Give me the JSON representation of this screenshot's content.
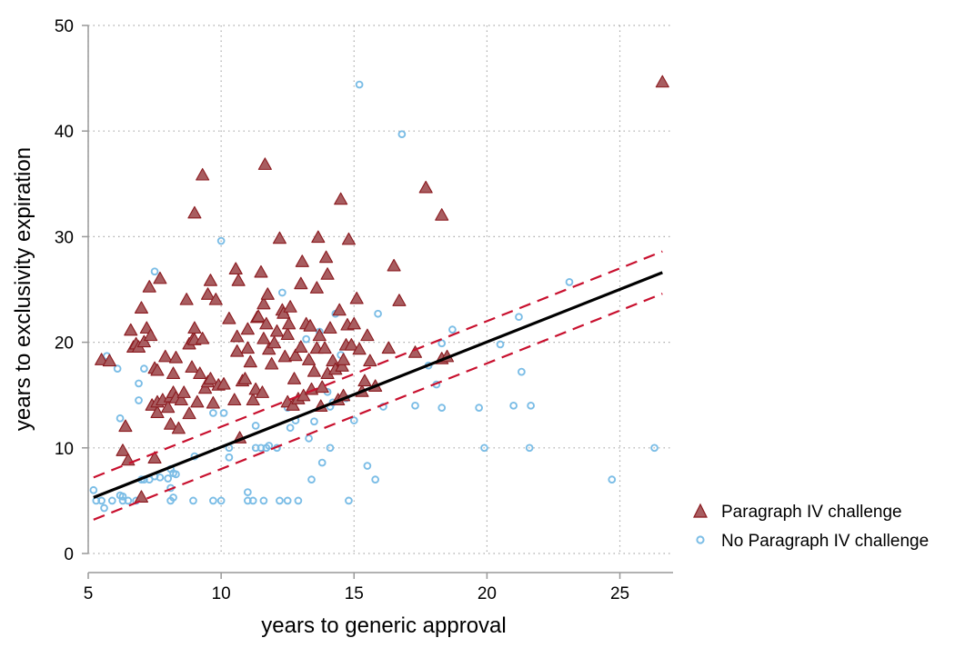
{
  "chart_data": {
    "type": "scatter",
    "title": "",
    "xlabel": "years to generic approval",
    "ylabel": "years to exclusivity expiration",
    "xlim": [
      5,
      27
    ],
    "ylim": [
      0,
      50
    ],
    "x_ticks": [
      5,
      10,
      15,
      20,
      25
    ],
    "y_ticks": [
      0,
      10,
      20,
      30,
      40,
      50
    ],
    "grid": true,
    "legend_position": "bottom-right outside",
    "colors": {
      "triangle_fill": "#a85d60",
      "triangle_stroke": "#8b1a1f",
      "circle_stroke": "#7bbde6",
      "fit_line": "#000000",
      "band_line": "#c8102e",
      "grid": "#aaaaaa",
      "axis": "#999999"
    },
    "series": [
      {
        "name": "Paragraph IV challenge",
        "marker": "triangle",
        "points": [
          [
            5.5,
            18.3
          ],
          [
            5.8,
            18.2
          ],
          [
            6.3,
            9.7
          ],
          [
            6.4,
            12
          ],
          [
            6.5,
            8.8
          ],
          [
            6.6,
            21.1
          ],
          [
            6.7,
            19.5
          ],
          [
            6.8,
            19.8
          ],
          [
            6.9,
            19.5
          ],
          [
            7.0,
            5.3
          ],
          [
            7.0,
            23.2
          ],
          [
            7.1,
            20
          ],
          [
            7.2,
            21.3
          ],
          [
            7.3,
            25.2
          ],
          [
            7.35,
            20.6
          ],
          [
            7.4,
            14
          ],
          [
            7.5,
            17.5
          ],
          [
            7.5,
            9
          ],
          [
            7.6,
            17.3
          ],
          [
            7.6,
            13.3
          ],
          [
            7.6,
            14.3
          ],
          [
            7.7,
            26
          ],
          [
            7.8,
            14.5
          ],
          [
            7.9,
            18.6
          ],
          [
            8.0,
            13.8
          ],
          [
            8.1,
            14.8
          ],
          [
            8.1,
            12.2
          ],
          [
            8.2,
            17
          ],
          [
            8.2,
            15.2
          ],
          [
            8.3,
            14.7
          ],
          [
            8.3,
            18.5
          ],
          [
            8.4,
            11.8
          ],
          [
            8.5,
            14.5
          ],
          [
            8.6,
            15.2
          ],
          [
            8.7,
            24
          ],
          [
            8.8,
            13.2
          ],
          [
            8.8,
            19.8
          ],
          [
            8.9,
            17.6
          ],
          [
            8.95,
            20.3
          ],
          [
            9.0,
            20.2
          ],
          [
            9.0,
            21.3
          ],
          [
            9.0,
            32.2
          ],
          [
            9.1,
            14.3
          ],
          [
            9.2,
            17
          ],
          [
            9.3,
            35.8
          ],
          [
            9.3,
            20.3
          ],
          [
            9.4,
            15.6
          ],
          [
            9.5,
            16.2
          ],
          [
            9.5,
            24.5
          ],
          [
            9.6,
            25.8
          ],
          [
            9.6,
            16.5
          ],
          [
            9.7,
            14.2
          ],
          [
            9.8,
            24
          ],
          [
            9.9,
            15.9
          ],
          [
            10.1,
            16
          ],
          [
            10.3,
            22.2
          ],
          [
            10.5,
            14.5
          ],
          [
            10.55,
            26.9
          ],
          [
            10.6,
            19.1
          ],
          [
            10.6,
            20.5
          ],
          [
            10.65,
            25.8
          ],
          [
            10.7,
            10.9
          ],
          [
            10.8,
            16.3
          ],
          [
            10.9,
            16.5
          ],
          [
            11.0,
            21.2
          ],
          [
            11.0,
            19.4
          ],
          [
            11.1,
            18.1
          ],
          [
            11.2,
            14.5
          ],
          [
            11.3,
            15.5
          ],
          [
            11.35,
            22.3
          ],
          [
            11.4,
            22.4
          ],
          [
            11.5,
            26.6
          ],
          [
            11.55,
            15.2
          ],
          [
            11.6,
            20.3
          ],
          [
            11.6,
            23.6
          ],
          [
            11.65,
            36.8
          ],
          [
            11.7,
            21.7
          ],
          [
            11.75,
            24.5
          ],
          [
            11.8,
            19.3
          ],
          [
            11.9,
            17.9
          ],
          [
            12.0,
            19.9
          ],
          [
            12.1,
            21
          ],
          [
            12.2,
            29.8
          ],
          [
            12.3,
            23
          ],
          [
            12.35,
            22.7
          ],
          [
            12.4,
            18.6
          ],
          [
            12.5,
            14.3
          ],
          [
            12.5,
            20.7
          ],
          [
            12.55,
            21.7
          ],
          [
            12.6,
            23.3
          ],
          [
            12.7,
            14
          ],
          [
            12.75,
            16.5
          ],
          [
            12.8,
            18.7
          ],
          [
            12.9,
            14.6
          ],
          [
            13.0,
            19.5
          ],
          [
            13.0,
            25.5
          ],
          [
            13.05,
            27.6
          ],
          [
            13.1,
            14.9
          ],
          [
            13.2,
            21.7
          ],
          [
            13.3,
            18.3
          ],
          [
            13.35,
            21.5
          ],
          [
            13.4,
            15.5
          ],
          [
            13.5,
            17.2
          ],
          [
            13.6,
            19.4
          ],
          [
            13.6,
            25.1
          ],
          [
            13.65,
            29.9
          ],
          [
            13.7,
            20.6
          ],
          [
            13.75,
            13.9
          ],
          [
            13.8,
            15.7
          ],
          [
            13.9,
            19.4
          ],
          [
            13.95,
            28
          ],
          [
            14.0,
            17
          ],
          [
            14.0,
            26.4
          ],
          [
            14.1,
            21.3
          ],
          [
            14.2,
            18.2
          ],
          [
            14.3,
            17.4
          ],
          [
            14.4,
            14.5
          ],
          [
            14.45,
            23
          ],
          [
            14.5,
            33.5
          ],
          [
            14.55,
            17.7
          ],
          [
            14.6,
            14.9
          ],
          [
            14.6,
            18.3
          ],
          [
            14.7,
            19.7
          ],
          [
            14.75,
            21.6
          ],
          [
            14.8,
            29.7
          ],
          [
            14.9,
            19.7
          ],
          [
            15.0,
            21.7
          ],
          [
            15.1,
            24.1
          ],
          [
            15.2,
            19.3
          ],
          [
            15.3,
            15.3
          ],
          [
            15.4,
            16.3
          ],
          [
            15.5,
            20.6
          ],
          [
            15.6,
            18.2
          ],
          [
            15.8,
            15.8
          ],
          [
            16.3,
            19.4
          ],
          [
            16.5,
            27.2
          ],
          [
            16.7,
            23.9
          ],
          [
            17.3,
            19
          ],
          [
            17.7,
            34.6
          ],
          [
            18.3,
            32
          ],
          [
            18.3,
            18.4
          ],
          [
            18.5,
            18.6
          ],
          [
            26.6,
            44.6
          ]
        ]
      },
      {
        "name": "No Paragraph IV challenge",
        "marker": "circle",
        "points": [
          [
            5.2,
            6
          ],
          [
            5.3,
            5
          ],
          [
            5.5,
            5
          ],
          [
            5.6,
            4.3
          ],
          [
            5.7,
            18.7
          ],
          [
            5.9,
            5
          ],
          [
            6.1,
            17.5
          ],
          [
            6.2,
            5.5
          ],
          [
            6.2,
            12.8
          ],
          [
            6.3,
            5.4
          ],
          [
            6.3,
            5
          ],
          [
            6.5,
            5
          ],
          [
            6.8,
            5
          ],
          [
            6.9,
            16.1
          ],
          [
            6.9,
            14.5
          ],
          [
            7.0,
            7
          ],
          [
            7.1,
            17.5
          ],
          [
            7.1,
            7
          ],
          [
            7.3,
            7
          ],
          [
            7.5,
            26.7
          ],
          [
            7.5,
            7.3
          ],
          [
            7.7,
            7.2
          ],
          [
            8.0,
            7.1
          ],
          [
            8.1,
            8
          ],
          [
            8.1,
            6.2
          ],
          [
            8.1,
            5
          ],
          [
            8.2,
            5.3
          ],
          [
            8.2,
            7.6
          ],
          [
            8.3,
            7.5
          ],
          [
            8.95,
            5
          ],
          [
            9.0,
            9.2
          ],
          [
            9.7,
            5
          ],
          [
            9.7,
            13.3
          ],
          [
            10.0,
            29.6
          ],
          [
            10.0,
            5
          ],
          [
            10.1,
            13.3
          ],
          [
            10.3,
            9.1
          ],
          [
            10.3,
            10
          ],
          [
            11.0,
            5
          ],
          [
            11.0,
            5.8
          ],
          [
            11.2,
            5
          ],
          [
            11.3,
            10
          ],
          [
            11.3,
            12.1
          ],
          [
            11.5,
            10
          ],
          [
            11.6,
            5
          ],
          [
            11.7,
            10
          ],
          [
            11.8,
            10.2
          ],
          [
            12.1,
            10
          ],
          [
            12.2,
            5
          ],
          [
            12.3,
            24.7
          ],
          [
            12.5,
            5
          ],
          [
            12.5,
            13.8
          ],
          [
            12.6,
            11.9
          ],
          [
            12.8,
            12.6
          ],
          [
            12.9,
            5
          ],
          [
            13.2,
            20.3
          ],
          [
            13.3,
            10.9
          ],
          [
            13.4,
            7
          ],
          [
            13.5,
            12.5
          ],
          [
            13.7,
            21
          ],
          [
            13.8,
            8.6
          ],
          [
            14.0,
            15.3
          ],
          [
            14.1,
            10
          ],
          [
            14.1,
            13.9
          ],
          [
            14.2,
            14.3
          ],
          [
            14.3,
            22.7
          ],
          [
            14.5,
            18.8
          ],
          [
            14.7,
            14.7
          ],
          [
            14.8,
            5
          ],
          [
            15.0,
            12.6
          ],
          [
            15.2,
            44.4
          ],
          [
            15.5,
            8.3
          ],
          [
            15.8,
            7
          ],
          [
            15.9,
            22.7
          ],
          [
            16.1,
            13.9
          ],
          [
            16.8,
            39.7
          ],
          [
            17.3,
            14
          ],
          [
            17.8,
            17.8
          ],
          [
            18.1,
            16
          ],
          [
            18.3,
            13.8
          ],
          [
            18.3,
            19.9
          ],
          [
            18.7,
            21.2
          ],
          [
            19.7,
            13.8
          ],
          [
            19.9,
            10
          ],
          [
            20.5,
            19.8
          ],
          [
            21.0,
            14
          ],
          [
            21.2,
            22.4
          ],
          [
            21.3,
            17.2
          ],
          [
            21.6,
            10
          ],
          [
            21.65,
            14
          ],
          [
            23.1,
            25.7
          ],
          [
            24.7,
            7
          ],
          [
            26.3,
            10
          ]
        ]
      }
    ],
    "fit_line": {
      "x": [
        5.2,
        26.6
      ],
      "y": [
        5.3,
        26.6
      ]
    },
    "band_upper": {
      "x": [
        5.2,
        26.6
      ],
      "y": [
        7.2,
        28.6
      ]
    },
    "band_lower": {
      "x": [
        5.2,
        26.6
      ],
      "y": [
        3.2,
        24.6
      ]
    }
  }
}
